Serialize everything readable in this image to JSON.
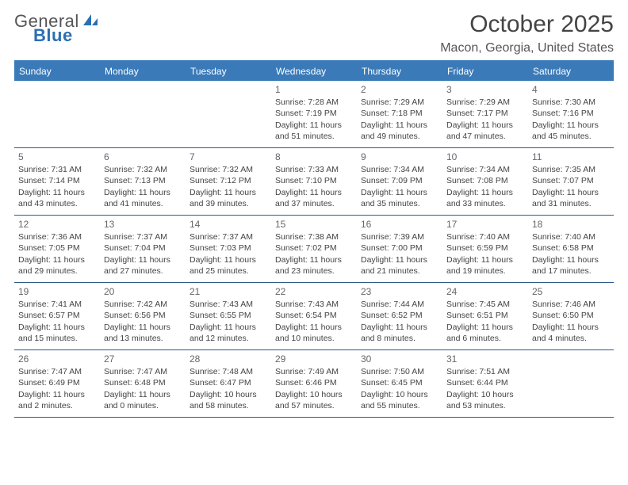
{
  "logo": {
    "word1": "General",
    "word2": "Blue"
  },
  "title": "October 2025",
  "location": "Macon, Georgia, United States",
  "colors": {
    "header_bg": "#3a7ab8",
    "header_text": "#ffffff",
    "row_border": "#2b5a8a",
    "body_text": "#444444",
    "brand_blue": "#2b6fb3"
  },
  "typography": {
    "title_fontsize": 30,
    "location_fontsize": 16,
    "weekday_fontsize": 12,
    "cell_fontsize": 10.5,
    "daynum_fontsize": 12
  },
  "layout": {
    "columns": 7,
    "rows": 5,
    "cell_min_height": 84
  },
  "weekdays": [
    "Sunday",
    "Monday",
    "Tuesday",
    "Wednesday",
    "Thursday",
    "Friday",
    "Saturday"
  ],
  "weeks": [
    [
      null,
      null,
      null,
      {
        "n": "1",
        "sr": "Sunrise: 7:28 AM",
        "ss": "Sunset: 7:19 PM",
        "d1": "Daylight: 11 hours",
        "d2": "and 51 minutes."
      },
      {
        "n": "2",
        "sr": "Sunrise: 7:29 AM",
        "ss": "Sunset: 7:18 PM",
        "d1": "Daylight: 11 hours",
        "d2": "and 49 minutes."
      },
      {
        "n": "3",
        "sr": "Sunrise: 7:29 AM",
        "ss": "Sunset: 7:17 PM",
        "d1": "Daylight: 11 hours",
        "d2": "and 47 minutes."
      },
      {
        "n": "4",
        "sr": "Sunrise: 7:30 AM",
        "ss": "Sunset: 7:16 PM",
        "d1": "Daylight: 11 hours",
        "d2": "and 45 minutes."
      }
    ],
    [
      {
        "n": "5",
        "sr": "Sunrise: 7:31 AM",
        "ss": "Sunset: 7:14 PM",
        "d1": "Daylight: 11 hours",
        "d2": "and 43 minutes."
      },
      {
        "n": "6",
        "sr": "Sunrise: 7:32 AM",
        "ss": "Sunset: 7:13 PM",
        "d1": "Daylight: 11 hours",
        "d2": "and 41 minutes."
      },
      {
        "n": "7",
        "sr": "Sunrise: 7:32 AM",
        "ss": "Sunset: 7:12 PM",
        "d1": "Daylight: 11 hours",
        "d2": "and 39 minutes."
      },
      {
        "n": "8",
        "sr": "Sunrise: 7:33 AM",
        "ss": "Sunset: 7:10 PM",
        "d1": "Daylight: 11 hours",
        "d2": "and 37 minutes."
      },
      {
        "n": "9",
        "sr": "Sunrise: 7:34 AM",
        "ss": "Sunset: 7:09 PM",
        "d1": "Daylight: 11 hours",
        "d2": "and 35 minutes."
      },
      {
        "n": "10",
        "sr": "Sunrise: 7:34 AM",
        "ss": "Sunset: 7:08 PM",
        "d1": "Daylight: 11 hours",
        "d2": "and 33 minutes."
      },
      {
        "n": "11",
        "sr": "Sunrise: 7:35 AM",
        "ss": "Sunset: 7:07 PM",
        "d1": "Daylight: 11 hours",
        "d2": "and 31 minutes."
      }
    ],
    [
      {
        "n": "12",
        "sr": "Sunrise: 7:36 AM",
        "ss": "Sunset: 7:05 PM",
        "d1": "Daylight: 11 hours",
        "d2": "and 29 minutes."
      },
      {
        "n": "13",
        "sr": "Sunrise: 7:37 AM",
        "ss": "Sunset: 7:04 PM",
        "d1": "Daylight: 11 hours",
        "d2": "and 27 minutes."
      },
      {
        "n": "14",
        "sr": "Sunrise: 7:37 AM",
        "ss": "Sunset: 7:03 PM",
        "d1": "Daylight: 11 hours",
        "d2": "and 25 minutes."
      },
      {
        "n": "15",
        "sr": "Sunrise: 7:38 AM",
        "ss": "Sunset: 7:02 PM",
        "d1": "Daylight: 11 hours",
        "d2": "and 23 minutes."
      },
      {
        "n": "16",
        "sr": "Sunrise: 7:39 AM",
        "ss": "Sunset: 7:00 PM",
        "d1": "Daylight: 11 hours",
        "d2": "and 21 minutes."
      },
      {
        "n": "17",
        "sr": "Sunrise: 7:40 AM",
        "ss": "Sunset: 6:59 PM",
        "d1": "Daylight: 11 hours",
        "d2": "and 19 minutes."
      },
      {
        "n": "18",
        "sr": "Sunrise: 7:40 AM",
        "ss": "Sunset: 6:58 PM",
        "d1": "Daylight: 11 hours",
        "d2": "and 17 minutes."
      }
    ],
    [
      {
        "n": "19",
        "sr": "Sunrise: 7:41 AM",
        "ss": "Sunset: 6:57 PM",
        "d1": "Daylight: 11 hours",
        "d2": "and 15 minutes."
      },
      {
        "n": "20",
        "sr": "Sunrise: 7:42 AM",
        "ss": "Sunset: 6:56 PM",
        "d1": "Daylight: 11 hours",
        "d2": "and 13 minutes."
      },
      {
        "n": "21",
        "sr": "Sunrise: 7:43 AM",
        "ss": "Sunset: 6:55 PM",
        "d1": "Daylight: 11 hours",
        "d2": "and 12 minutes."
      },
      {
        "n": "22",
        "sr": "Sunrise: 7:43 AM",
        "ss": "Sunset: 6:54 PM",
        "d1": "Daylight: 11 hours",
        "d2": "and 10 minutes."
      },
      {
        "n": "23",
        "sr": "Sunrise: 7:44 AM",
        "ss": "Sunset: 6:52 PM",
        "d1": "Daylight: 11 hours",
        "d2": "and 8 minutes."
      },
      {
        "n": "24",
        "sr": "Sunrise: 7:45 AM",
        "ss": "Sunset: 6:51 PM",
        "d1": "Daylight: 11 hours",
        "d2": "and 6 minutes."
      },
      {
        "n": "25",
        "sr": "Sunrise: 7:46 AM",
        "ss": "Sunset: 6:50 PM",
        "d1": "Daylight: 11 hours",
        "d2": "and 4 minutes."
      }
    ],
    [
      {
        "n": "26",
        "sr": "Sunrise: 7:47 AM",
        "ss": "Sunset: 6:49 PM",
        "d1": "Daylight: 11 hours",
        "d2": "and 2 minutes."
      },
      {
        "n": "27",
        "sr": "Sunrise: 7:47 AM",
        "ss": "Sunset: 6:48 PM",
        "d1": "Daylight: 11 hours",
        "d2": "and 0 minutes."
      },
      {
        "n": "28",
        "sr": "Sunrise: 7:48 AM",
        "ss": "Sunset: 6:47 PM",
        "d1": "Daylight: 10 hours",
        "d2": "and 58 minutes."
      },
      {
        "n": "29",
        "sr": "Sunrise: 7:49 AM",
        "ss": "Sunset: 6:46 PM",
        "d1": "Daylight: 10 hours",
        "d2": "and 57 minutes."
      },
      {
        "n": "30",
        "sr": "Sunrise: 7:50 AM",
        "ss": "Sunset: 6:45 PM",
        "d1": "Daylight: 10 hours",
        "d2": "and 55 minutes."
      },
      {
        "n": "31",
        "sr": "Sunrise: 7:51 AM",
        "ss": "Sunset: 6:44 PM",
        "d1": "Daylight: 10 hours",
        "d2": "and 53 minutes."
      },
      null
    ]
  ]
}
